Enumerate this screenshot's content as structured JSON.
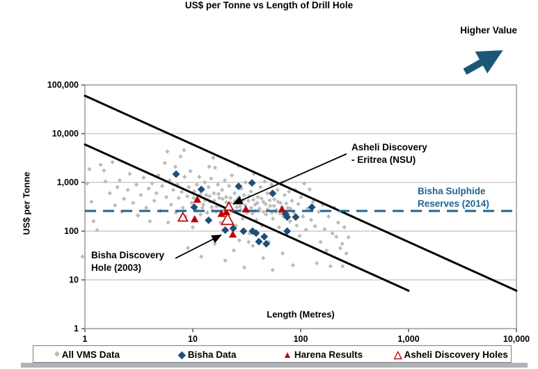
{
  "title": "US$ per Tonne vs Length of Drill Hole",
  "higher_value_label": "Higher Value",
  "axes": {
    "x_label": "Length (Metres)",
    "y_label": "US$ per Tonne",
    "x_ticks": [
      {
        "value": 1,
        "label": "1"
      },
      {
        "value": 10,
        "label": "10"
      },
      {
        "value": 100,
        "label": "100"
      },
      {
        "value": 1000,
        "label": "1,000"
      },
      {
        "value": 10000,
        "label": "10,000"
      }
    ],
    "y_ticks": [
      {
        "value": 1,
        "label": "1"
      },
      {
        "value": 10,
        "label": "10"
      },
      {
        "value": 100,
        "label": "100"
      },
      {
        "value": 1000,
        "label": "1,000"
      },
      {
        "value": 10000,
        "label": "10,000"
      },
      {
        "value": 100000,
        "label": "100,000"
      }
    ]
  },
  "annotations": {
    "asheli": {
      "line1": "Asheli Discovery",
      "line2": "- Eritrea (NSU)",
      "target": [
        21.6,
        316
      ]
    },
    "bisha_discovery": {
      "line1": "Bisha Discovery",
      "line2": "Hole (2003)",
      "target": [
        19.5,
        95
      ]
    },
    "reserves": {
      "line1": "Bisha Sulphide",
      "line2": "Reserves (2014)"
    }
  },
  "legend": {
    "items": [
      {
        "label": "All VMS Data",
        "marker": "diamond-small",
        "color": "#bcbcbc"
      },
      {
        "label": "Bisha Data",
        "marker": "diamond",
        "color": "#1f4e79"
      },
      {
        "label": "Harena Results",
        "marker": "triangle",
        "color": "#c00000"
      },
      {
        "label": "Asheli Discovery Holes",
        "marker": "triangle-open",
        "color": "#c00000"
      }
    ]
  },
  "colors": {
    "vms_gray": "#bcbcbc",
    "bisha_blue": "#1f4e79",
    "harena_red": "#c00000",
    "reference_blue": "#1f6391",
    "arrow_navy": "#1b5876",
    "gridline": "#b3b3b3",
    "plot_border": "#808080",
    "trend_black": "#000000"
  },
  "chart_data": {
    "type": "scatter",
    "title": "US$ per Tonne vs Length of Drill Hole",
    "xlabel": "Length (Metres)",
    "ylabel": "US$ per Tonne",
    "x_axis": {
      "scale": "log",
      "min": 1,
      "max": 10000
    },
    "y_axis": {
      "scale": "log",
      "min": 1,
      "max": 100000
    },
    "grid": "horizontal-only",
    "legend_position": "bottom",
    "trend_lines": [
      {
        "name": "upper-envelope",
        "from": [
          1,
          60000
        ],
        "to": [
          10000,
          6
        ]
      },
      {
        "name": "lower-envelope",
        "from": [
          1,
          6000
        ],
        "to": [
          1000,
          6
        ]
      }
    ],
    "reference_line": {
      "label": "Bisha Sulphide Reserves (2014)",
      "value": 260,
      "style": "dashed",
      "color": "#1f6391"
    },
    "series": [
      {
        "name": "All VMS Data",
        "marker": "diamond",
        "color": "#bcbcbc",
        "size": 3.2,
        "points": [
          [
            0.95,
            30
          ],
          [
            1.05,
            950
          ],
          [
            1.1,
            1870
          ],
          [
            1.15,
            400
          ],
          [
            1.2,
            160
          ],
          [
            1.3,
            105
          ],
          [
            1.4,
            2300
          ],
          [
            1.5,
            1750
          ],
          [
            1.55,
            1050
          ],
          [
            1.7,
            600
          ],
          [
            1.8,
            2600
          ],
          [
            1.9,
            340
          ],
          [
            2.0,
            800
          ],
          [
            2.1,
            1100
          ],
          [
            2.2,
            250
          ],
          [
            2.3,
            460
          ],
          [
            2.5,
            700
          ],
          [
            2.6,
            1500
          ],
          [
            2.8,
            380
          ],
          [
            3.0,
            900
          ],
          [
            3.1,
            210
          ],
          [
            3.3,
            550
          ],
          [
            3.5,
            1250
          ],
          [
            3.7,
            300
          ],
          [
            3.9,
            750
          ],
          [
            4.0,
            160
          ],
          [
            4.2,
            950
          ],
          [
            4.4,
            420
          ],
          [
            4.6,
            600
          ],
          [
            4.8,
            1400
          ],
          [
            5.0,
            260
          ],
          [
            5.2,
            850
          ],
          [
            5.5,
            2500
          ],
          [
            5.7,
            500
          ],
          [
            5.9,
            150
          ],
          [
            6.1,
            1100
          ],
          [
            6.3,
            350
          ],
          [
            6.6,
            700
          ],
          [
            6.9,
            2100
          ],
          [
            7.0,
            240
          ],
          [
            7.2,
            900
          ],
          [
            7.4,
            480
          ],
          [
            7.7,
            3400
          ],
          [
            7.9,
            640
          ],
          [
            8.1,
            300
          ],
          [
            8.4,
            1300
          ],
          [
            8.6,
            200
          ],
          [
            8.9,
            520
          ],
          [
            9.2,
            800
          ],
          [
            9.5,
            1700
          ],
          [
            9.8,
            380
          ],
          [
            10.0,
            120
          ],
          [
            10.3,
            650
          ],
          [
            10.6,
            280
          ],
          [
            10.9,
            900
          ],
          [
            11.2,
            450
          ],
          [
            11.5,
            1300
          ],
          [
            11.8,
            220
          ],
          [
            12.1,
            700
          ],
          [
            12.5,
            350
          ],
          [
            12.9,
            1000
          ],
          [
            13.3,
            550
          ],
          [
            13.7,
            170
          ],
          [
            14.0,
            800
          ],
          [
            14.4,
            400
          ],
          [
            14.8,
            1200
          ],
          [
            15.2,
            260
          ],
          [
            15.7,
            600
          ],
          [
            16.1,
            2000
          ],
          [
            16.6,
            320
          ],
          [
            17.1,
            900
          ],
          [
            17.6,
            480
          ],
          [
            18.1,
            150
          ],
          [
            18.7,
            700
          ],
          [
            19.2,
            260
          ],
          [
            19.8,
            1100
          ],
          [
            20.4,
            500
          ],
          [
            21.0,
            200
          ],
          [
            21.7,
            850
          ],
          [
            22.3,
            380
          ],
          [
            23.0,
            1400
          ],
          [
            23.7,
            250
          ],
          [
            24.4,
            600
          ],
          [
            25.1,
            130
          ],
          [
            25.9,
            450
          ],
          [
            26.6,
            2200
          ],
          [
            27.4,
            320
          ],
          [
            28.2,
            750
          ],
          [
            29.0,
            180
          ],
          [
            29.9,
            550
          ],
          [
            30.8,
            1000
          ],
          [
            31.7,
            280
          ],
          [
            32.7,
            420
          ],
          [
            33.6,
            90
          ],
          [
            34.6,
            650
          ],
          [
            35.7,
            230
          ],
          [
            36.7,
            1500
          ],
          [
            37.8,
            350
          ],
          [
            38.9,
            170
          ],
          [
            40.1,
            500
          ],
          [
            41.3,
            260
          ],
          [
            42.5,
            800
          ],
          [
            43.8,
            130
          ],
          [
            45.1,
            400
          ],
          [
            46.4,
            1050
          ],
          [
            47.8,
            220
          ],
          [
            49.2,
            600
          ],
          [
            50.7,
            60
          ],
          [
            52.2,
            330
          ],
          [
            53.7,
            900
          ],
          [
            55.3,
            180
          ],
          [
            57,
            450
          ],
          [
            59,
            250
          ],
          [
            61,
            700
          ],
          [
            63,
            120
          ],
          [
            65,
            380
          ],
          [
            67,
            1000
          ],
          [
            69,
            200
          ],
          [
            71,
            550
          ],
          [
            74,
            90
          ],
          [
            76,
            300
          ],
          [
            78,
            650
          ],
          [
            80,
            160
          ],
          [
            83,
            420
          ],
          [
            86,
            240
          ],
          [
            89,
            700
          ],
          [
            92,
            130
          ],
          [
            95,
            360
          ],
          [
            98,
            80
          ],
          [
            101,
            500
          ],
          [
            105,
            200
          ],
          [
            108,
            950
          ],
          [
            112,
            107
          ],
          [
            116,
            290
          ],
          [
            121,
            720
          ],
          [
            125,
            170
          ],
          [
            130,
            400
          ],
          [
            136,
            126
          ],
          [
            141,
            22
          ],
          [
            147,
            250
          ],
          [
            153,
            60
          ],
          [
            160,
            350
          ],
          [
            167,
            110
          ],
          [
            174,
            40
          ],
          [
            182,
            200
          ],
          [
            189,
            19
          ],
          [
            197,
            90
          ],
          [
            205,
            300
          ],
          [
            214,
            77
          ],
          [
            223,
            150
          ],
          [
            233,
            45
          ],
          [
            243,
            55
          ],
          [
            245,
            19
          ],
          [
            254,
            120
          ],
          [
            265,
            35
          ],
          [
            277,
            75
          ],
          [
            9,
            45
          ],
          [
            12,
            30
          ],
          [
            16,
            55
          ],
          [
            20,
            25
          ],
          [
            24,
            40
          ],
          [
            30,
            18
          ],
          [
            36,
            50
          ],
          [
            45,
            28
          ],
          [
            55,
            16
          ],
          [
            68,
            35
          ],
          [
            85,
            20
          ],
          [
            33,
            60
          ],
          [
            27,
            65
          ],
          [
            5.8,
            4300
          ],
          [
            8.3,
            4600
          ],
          [
            15.5,
            3200
          ],
          [
            14.2,
            2100
          ],
          [
            10.2,
            480
          ],
          [
            11,
            260
          ],
          [
            11.7,
            560
          ],
          [
            12.3,
            300
          ],
          [
            13,
            430
          ],
          [
            13.6,
            240
          ],
          [
            14.3,
            520
          ],
          [
            15,
            310
          ],
          [
            15.8,
            420
          ],
          [
            16.5,
            250
          ],
          [
            17.3,
            580
          ],
          [
            18,
            330
          ],
          [
            18.9,
            460
          ],
          [
            19.6,
            270
          ],
          [
            20.5,
            390
          ],
          [
            21.4,
            300
          ],
          [
            22.4,
            480
          ],
          [
            23.4,
            260
          ],
          [
            24.5,
            410
          ],
          [
            25.6,
            310
          ],
          [
            26.7,
            500
          ],
          [
            27.9,
            270
          ],
          [
            29.2,
            430
          ],
          [
            30.5,
            340
          ],
          [
            31.9,
            240
          ],
          [
            33.3,
            520
          ],
          [
            34.8,
            300
          ],
          [
            36.4,
            440
          ],
          [
            38,
            260
          ],
          [
            39.7,
            380
          ],
          [
            41.5,
            290
          ],
          [
            43.4,
            470
          ],
          [
            45.3,
            250
          ],
          [
            47.4,
            360
          ],
          [
            49.5,
            280
          ],
          [
            51.7,
            430
          ],
          [
            54,
            240
          ],
          [
            56.5,
            330
          ],
          [
            59.5,
            270
          ],
          [
            61.6,
            400
          ],
          [
            64.4,
            230
          ],
          [
            67.3,
            310
          ],
          [
            70.3,
            260
          ],
          [
            73.5,
            370
          ],
          [
            76.8,
            220
          ],
          [
            80.2,
            290
          ]
        ]
      },
      {
        "name": "Bisha Data",
        "marker": "diamond",
        "color": "#1f4e79",
        "size": 5.5,
        "points": [
          [
            7,
            1480
          ],
          [
            12,
            720
          ],
          [
            10.3,
            310
          ],
          [
            14,
            167
          ],
          [
            26.6,
            830
          ],
          [
            35.4,
            975
          ],
          [
            55,
            595
          ],
          [
            72,
            228
          ],
          [
            75,
            195
          ],
          [
            90,
            195
          ],
          [
            127,
            310
          ],
          [
            20,
            105
          ],
          [
            23.7,
            114
          ],
          [
            29.5,
            100
          ],
          [
            35.8,
            100
          ],
          [
            38.6,
            91
          ],
          [
            46,
            77
          ],
          [
            41,
            61
          ],
          [
            48,
            55
          ],
          [
            75,
            100
          ]
        ]
      },
      {
        "name": "Harena Results",
        "marker": "triangle",
        "color": "#c00000",
        "size": 6,
        "points": [
          [
            11,
            440
          ],
          [
            10.4,
            175
          ],
          [
            18.4,
            225
          ],
          [
            20.5,
            245
          ],
          [
            31,
            280
          ],
          [
            67,
            280
          ],
          [
            23.5,
            85
          ]
        ]
      },
      {
        "name": "Asheli Discovery Holes",
        "marker": "triangle-open",
        "color": "#c00000",
        "size": 7,
        "points": [
          [
            8.1,
            190
          ],
          [
            21.6,
            316
          ],
          [
            21,
            170
          ]
        ],
        "sizes": [
          7,
          6.5,
          9
        ]
      }
    ]
  }
}
